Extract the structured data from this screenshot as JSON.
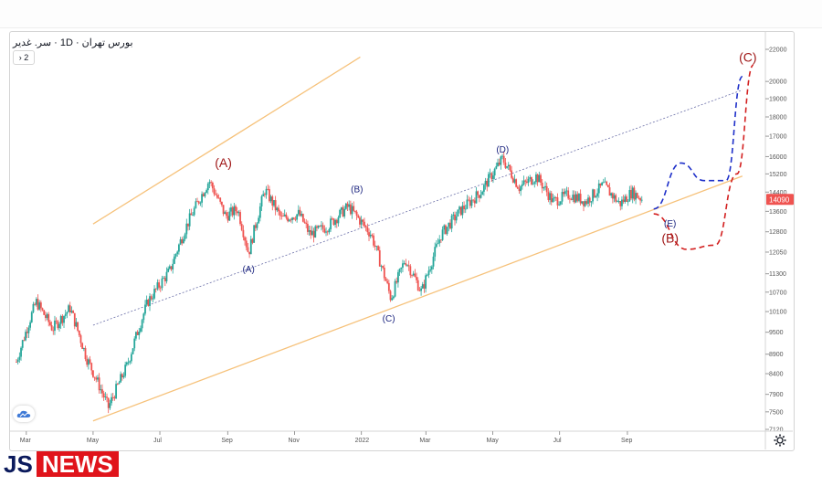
{
  "header": {
    "symbol_title": "بورس تهران · 1D · سر. غدیر",
    "collapse_label": "› 2"
  },
  "brand": {
    "part1": "JS",
    "part2": "NEWS"
  },
  "colors": {
    "up": "#26a69a",
    "down": "#ef5350",
    "channel": "#f6c27b",
    "midline": "#6b6fa8",
    "projection_blue": "#1e2fc9",
    "projection_red": "#d32020",
    "price_badge": "#ef5350",
    "wave_label": "#1a237e",
    "wave_label_red": "#a01818"
  },
  "icons": {
    "logo": "tradingview-cloud-icon",
    "settings": "gear-icon"
  },
  "chart_data": {
    "type": "candlestick",
    "title": "",
    "price_scale": "log",
    "grid": false,
    "y_ticks": [
      7120,
      7500,
      7900,
      8400,
      8900,
      9500,
      10100,
      10700,
      11300,
      12050,
      12800,
      13600,
      14400,
      15200,
      16000,
      17000,
      18000,
      19000,
      20000,
      22000
    ],
    "x_ticks": [
      "Mar",
      "May",
      "Jul",
      "Sep",
      "Nov",
      "2022",
      "Mar",
      "May",
      "Jul",
      "Sep"
    ],
    "ylim": [
      7120,
      22000
    ],
    "last_price": "14090",
    "close_path": [
      [
        "2021-02-20",
        8700
      ],
      [
        "2021-03-10",
        10400
      ],
      [
        "2021-03-25",
        9600
      ],
      [
        "2021-04-10",
        10200
      ],
      [
        "2021-04-25",
        8800
      ],
      [
        "2021-05-15",
        7600
      ],
      [
        "2021-06-01",
        8600
      ],
      [
        "2021-06-20",
        10400
      ],
      [
        "2021-07-10",
        11400
      ],
      [
        "2021-07-25",
        13000
      ],
      [
        "2021-08-15",
        14900
      ],
      [
        "2021-08-30",
        13400
      ],
      [
        "2021-09-10",
        13700
      ],
      [
        "2021-09-20",
        12000
      ],
      [
        "2021-10-05",
        14500
      ],
      [
        "2021-10-20",
        13300
      ],
      [
        "2021-11-05",
        13500
      ],
      [
        "2021-11-15",
        12700
      ],
      [
        "2021-12-01",
        13000
      ],
      [
        "2021-12-20",
        13800
      ],
      [
        "2022-01-10",
        12700
      ],
      [
        "2022-01-28",
        10500
      ],
      [
        "2022-02-10",
        11800
      ],
      [
        "2022-02-25",
        10700
      ],
      [
        "2022-03-15",
        12700
      ],
      [
        "2022-04-01",
        13600
      ],
      [
        "2022-04-20",
        14400
      ],
      [
        "2022-05-10",
        15900
      ],
      [
        "2022-05-25",
        14600
      ],
      [
        "2022-06-10",
        15100
      ],
      [
        "2022-06-25",
        14000
      ],
      [
        "2022-07-10",
        14300
      ],
      [
        "2022-07-25",
        14000
      ],
      [
        "2022-08-10",
        14700
      ],
      [
        "2022-08-25",
        13900
      ],
      [
        "2022-09-05",
        14400
      ],
      [
        "2022-09-15",
        14090
      ]
    ],
    "channel_lines": [
      {
        "name": "upper",
        "from": [
          "2021-05-01",
          13100
        ],
        "to": [
          "2021-12-31",
          21500
        ]
      },
      {
        "name": "lower",
        "from": [
          "2021-05-01",
          7300
        ],
        "to": [
          "2022-12-15",
          15100
        ]
      },
      {
        "name": "middle",
        "style": "dotted",
        "from": [
          "2021-05-01",
          9700
        ],
        "to": [
          "2022-12-15",
          19500
        ]
      }
    ],
    "wave_labels": [
      {
        "text": "(A)",
        "at": [
          "2021-08-28",
          15500
        ],
        "color": "red"
      },
      {
        "text": "(A)",
        "at": [
          "2021-09-20",
          11350
        ],
        "color": "blue"
      },
      {
        "text": "(B)",
        "at": [
          "2021-12-28",
          14400
        ],
        "color": "blue"
      },
      {
        "text": "(C)",
        "at": [
          "2022-01-26",
          9800
        ],
        "color": "blue"
      },
      {
        "text": "(D)",
        "at": [
          "2022-05-10",
          16200
        ],
        "color": "blue"
      },
      {
        "text": "(E)",
        "at": [
          "2022-10-10",
          13000
        ],
        "color": "blue"
      },
      {
        "text": "(B)",
        "at": [
          "2022-10-10",
          12400
        ],
        "color": "red"
      },
      {
        "text": "(C)",
        "at": [
          "2022-12-20",
          21200
        ],
        "color": "red"
      }
    ],
    "projections": [
      {
        "name": "blue",
        "points": [
          [
            "2022-09-25",
            13700
          ],
          [
            "2022-10-20",
            15700
          ],
          [
            "2022-11-10",
            14900
          ],
          [
            "2022-11-30",
            14900
          ],
          [
            "2022-12-15",
            20300
          ]
        ]
      },
      {
        "name": "red",
        "points": [
          [
            "2022-09-25",
            13500
          ],
          [
            "2022-10-25",
            12150
          ],
          [
            "2022-11-20",
            12300
          ],
          [
            "2022-12-10",
            15200
          ],
          [
            "2022-12-25",
            21000
          ]
        ]
      }
    ]
  }
}
